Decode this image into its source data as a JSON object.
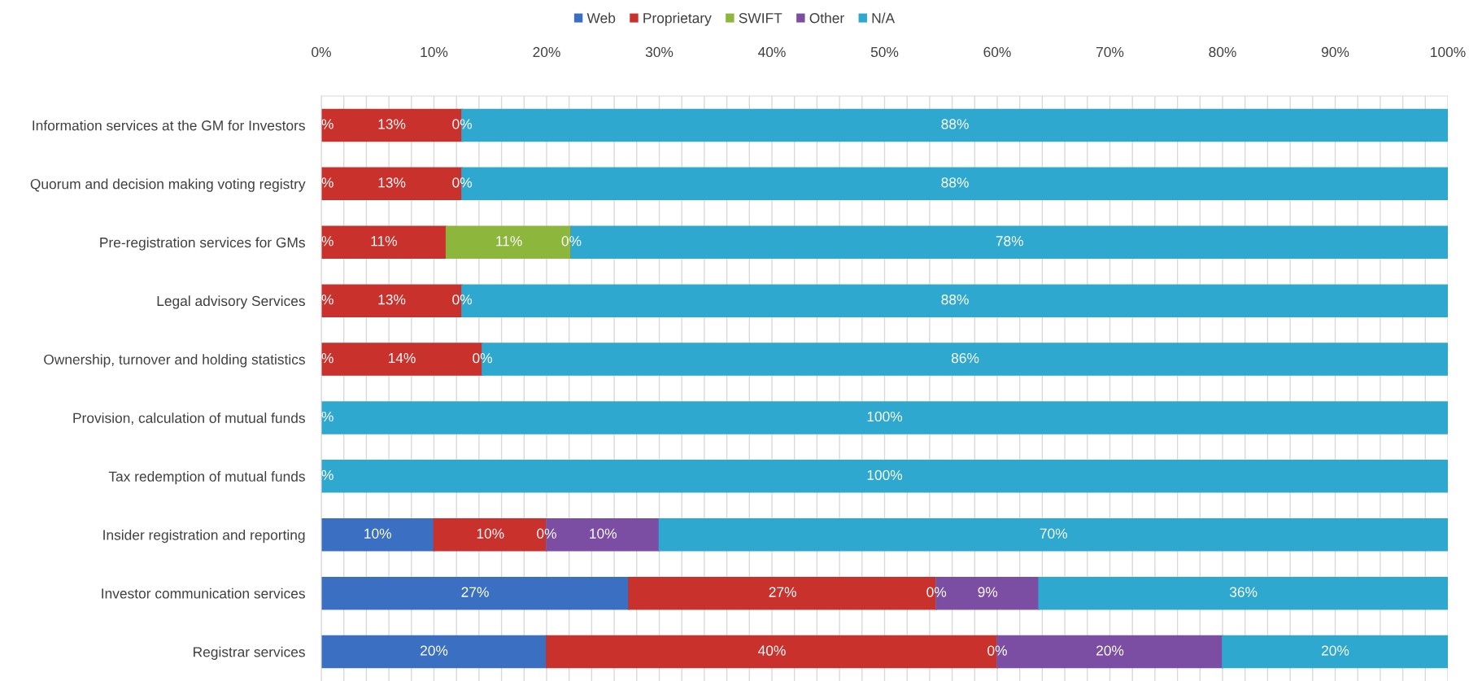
{
  "chart_data": {
    "type": "bar",
    "orientation": "horizontal",
    "stacked": true,
    "categories": [
      "Information services at the GM for Investors",
      "Quorum and decision making voting registry",
      "Pre-registration services for GMs",
      "Legal advisory Services",
      "Ownership, turnover and holding statistics",
      "Provision, calculation of mutual funds",
      "Tax redemption of mutual funds",
      "Insider registration and reporting",
      "Investor communication services",
      "Registrar services"
    ],
    "series": [
      {
        "name": "Web",
        "color": "#3a6fc2",
        "values": [
          0,
          0,
          0,
          0,
          0,
          0,
          0,
          10,
          27.3,
          20
        ],
        "value_labels": [
          "%",
          "%",
          "%",
          "%",
          "%",
          "%",
          "%",
          "10%",
          "27%",
          "20%"
        ]
      },
      {
        "name": "Proprietary",
        "color": "#c8312c",
        "values": [
          12.5,
          12.5,
          11.1,
          12.5,
          14.3,
          0,
          0,
          10,
          27.3,
          40
        ],
        "value_labels": [
          "13%",
          "13%",
          "11%",
          "13%",
          "14%",
          null,
          null,
          "10%",
          "27%",
          "40%"
        ]
      },
      {
        "name": "SWIFT",
        "color": "#8db63c",
        "values": [
          0,
          0,
          11.1,
          0,
          0,
          0,
          0,
          0,
          0,
          0
        ],
        "value_labels": [
          "0%",
          "0%",
          "11%",
          "0%",
          "0%",
          null,
          null,
          "0%",
          "0%",
          "0%"
        ]
      },
      {
        "name": "Other",
        "color": "#7b4ea3",
        "values": [
          0,
          0,
          0,
          0,
          0,
          0,
          0,
          10,
          9.1,
          20
        ],
        "value_labels": [
          null,
          null,
          "0%",
          null,
          null,
          null,
          null,
          "10%",
          "9%",
          "20%"
        ]
      },
      {
        "name": "N/A",
        "color": "#2ea8cf",
        "values": [
          87.5,
          87.5,
          77.8,
          87.5,
          85.7,
          100,
          100,
          70,
          36.3,
          20
        ],
        "value_labels": [
          "88%",
          "88%",
          "78%",
          "88%",
          "86%",
          "100%",
          "100%",
          "70%",
          "36%",
          "20%"
        ]
      }
    ],
    "xlim": [
      0,
      100
    ],
    "xticks": [
      {
        "value": 0,
        "label": "0%"
      },
      {
        "value": 2,
        "label": null
      },
      {
        "value": 4,
        "label": null
      },
      {
        "value": 6,
        "label": null
      },
      {
        "value": 8,
        "label": null
      },
      {
        "value": 10,
        "label": "10%"
      },
      {
        "value": 12,
        "label": null
      },
      {
        "value": 14,
        "label": null
      },
      {
        "value": 16,
        "label": null
      },
      {
        "value": 18,
        "label": null
      },
      {
        "value": 20,
        "label": "20%"
      },
      {
        "value": 22,
        "label": null
      },
      {
        "value": 24,
        "label": null
      },
      {
        "value": 26,
        "label": null
      },
      {
        "value": 28,
        "label": null
      },
      {
        "value": 30,
        "label": "30%"
      },
      {
        "value": 32,
        "label": null
      },
      {
        "value": 34,
        "label": null
      },
      {
        "value": 36,
        "label": null
      },
      {
        "value": 38,
        "label": null
      },
      {
        "value": 40,
        "label": "40%"
      },
      {
        "value": 42,
        "label": null
      },
      {
        "value": 44,
        "label": null
      },
      {
        "value": 46,
        "label": null
      },
      {
        "value": 48,
        "label": null
      },
      {
        "value": 50,
        "label": "50%"
      },
      {
        "value": 52,
        "label": null
      },
      {
        "value": 54,
        "label": null
      },
      {
        "value": 56,
        "label": null
      },
      {
        "value": 58,
        "label": null
      },
      {
        "value": 60,
        "label": "60%"
      },
      {
        "value": 62,
        "label": null
      },
      {
        "value": 64,
        "label": null
      },
      {
        "value": 66,
        "label": null
      },
      {
        "value": 68,
        "label": null
      },
      {
        "value": 70,
        "label": "70%"
      },
      {
        "value": 72,
        "label": null
      },
      {
        "value": 74,
        "label": null
      },
      {
        "value": 76,
        "label": null
      },
      {
        "value": 78,
        "label": null
      },
      {
        "value": 80,
        "label": "80%"
      },
      {
        "value": 82,
        "label": null
      },
      {
        "value": 84,
        "label": null
      },
      {
        "value": 86,
        "label": null
      },
      {
        "value": 88,
        "label": null
      },
      {
        "value": 90,
        "label": "90%"
      },
      {
        "value": 92,
        "label": null
      },
      {
        "value": 94,
        "label": null
      },
      {
        "value": 96,
        "label": null
      },
      {
        "value": 98,
        "label": null
      },
      {
        "value": 100,
        "label": "100%"
      }
    ],
    "grid": "x",
    "legend": "top"
  }
}
